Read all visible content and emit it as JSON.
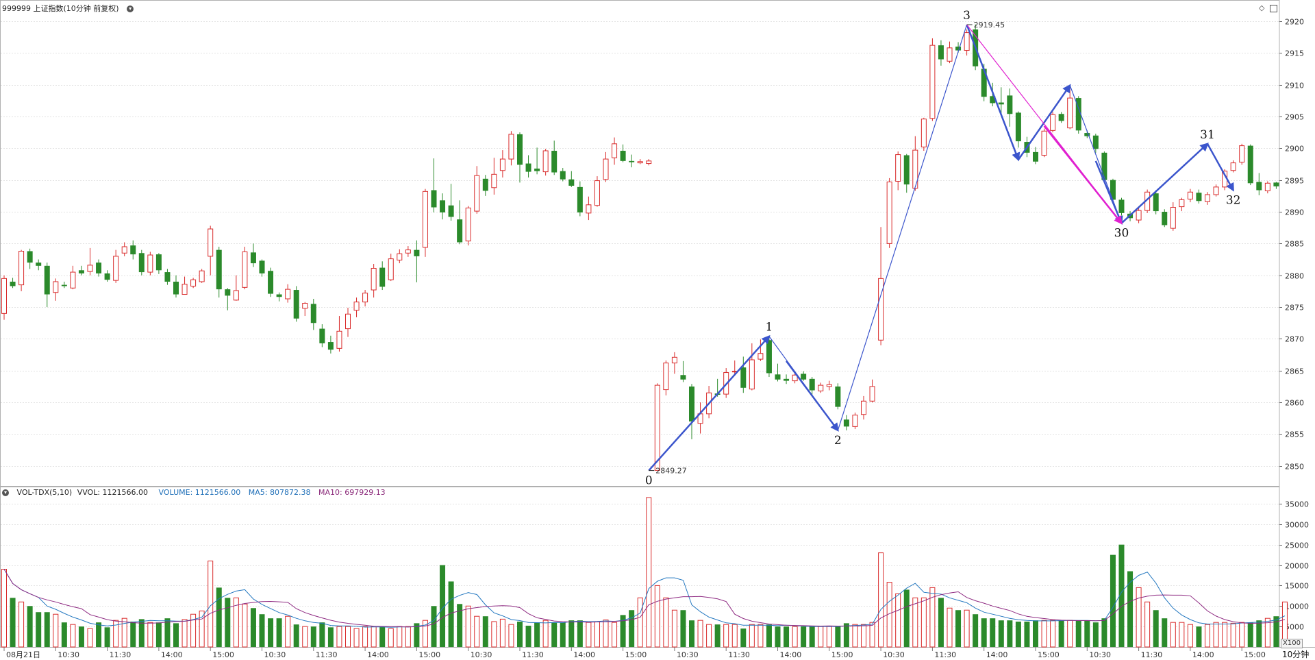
{
  "header": {
    "title": "999999 上证指数(10分钟 前复权)",
    "menu_icon": "chevron-down-icon",
    "controls": [
      "diamond-icon",
      "panel-toggle-icon"
    ]
  },
  "volume_header": {
    "name": "VOL-TDX(5,10)",
    "vvol": "VVOL: 1121566.00",
    "volume": "VOLUME: 1121566.00",
    "ma5": "MA5: 807872.38",
    "ma10": "MA10: 697929.13",
    "colors": {
      "volume": "#1f6fb8",
      "ma5": "#1f6fb8",
      "ma10": "#8b2a7a"
    }
  },
  "x_unit_tag": "X100",
  "period_label": "10分钟",
  "colors": {
    "up": "#d92a2a",
    "down": "#2b8a2b",
    "wave": "#3b55cc",
    "channel": "#e020d0",
    "ma5": "#2478c0",
    "ma10": "#8e2a82",
    "grid": "#e3e3e3"
  },
  "chart_data": {
    "type": "candlestick",
    "price_axis": {
      "ticks": [
        2850,
        2855,
        2860,
        2865,
        2870,
        2875,
        2880,
        2885,
        2890,
        2895,
        2900,
        2905,
        2910,
        2915,
        2920
      ],
      "range": [
        2847.5,
        2921.5
      ]
    },
    "volume_axis": {
      "ticks": [
        5000,
        10000,
        15000,
        20000,
        25000,
        30000,
        35000
      ],
      "range": [
        0,
        37500
      ],
      "unit": "X100"
    },
    "time_labels": [
      {
        "i": 0,
        "t": "08月21日"
      },
      {
        "i": 6,
        "t": "10:30"
      },
      {
        "i": 12,
        "t": "11:30"
      },
      {
        "i": 18,
        "t": "14:00"
      },
      {
        "i": 24,
        "t": "15:00"
      },
      {
        "i": 30,
        "t": "10:30"
      },
      {
        "i": 36,
        "t": "11:30"
      },
      {
        "i": 42,
        "t": "14:00"
      },
      {
        "i": 48,
        "t": "15:00"
      },
      {
        "i": 54,
        "t": "10:30"
      },
      {
        "i": 60,
        "t": "11:30"
      },
      {
        "i": 66,
        "t": "14:00"
      },
      {
        "i": 72,
        "t": "15:00"
      },
      {
        "i": 78,
        "t": "10:30"
      },
      {
        "i": 84,
        "t": "11:30"
      },
      {
        "i": 90,
        "t": "14:00"
      },
      {
        "i": 96,
        "t": "15:00"
      },
      {
        "i": 102,
        "t": "10:30"
      },
      {
        "i": 108,
        "t": "11:30"
      },
      {
        "i": 114,
        "t": "14:00"
      },
      {
        "i": 120,
        "t": "15:00"
      },
      {
        "i": 126,
        "t": "10:30"
      },
      {
        "i": 132,
        "t": "11:30"
      },
      {
        "i": 138,
        "t": "14:00"
      },
      {
        "i": 144,
        "t": "15:00"
      }
    ],
    "candles": [
      [
        2874,
        2879.5,
        2873,
        2880
      ],
      [
        2879,
        2878.3,
        2878,
        2879.6
      ],
      [
        2878.5,
        2883.8,
        2877.5,
        2884
      ],
      [
        2883.8,
        2882,
        2881,
        2884.2
      ],
      [
        2882,
        2881.5,
        2880.8,
        2882.5
      ],
      [
        2881.5,
        2877,
        2875,
        2882
      ],
      [
        2877.3,
        2879,
        2876,
        2879.5
      ],
      [
        2878.5,
        2878.3,
        2878,
        2879
      ],
      [
        2878,
        2880.5,
        2877.8,
        2881.5
      ],
      [
        2880.8,
        2880.3,
        2880,
        2881.5
      ],
      [
        2880.6,
        2881.6,
        2880,
        2884.3
      ],
      [
        2882,
        2880.3,
        2879.8,
        2882.5
      ],
      [
        2880.3,
        2879.3,
        2879,
        2880.8
      ],
      [
        2879.2,
        2883,
        2878.8,
        2884
      ],
      [
        2883.5,
        2884.5,
        2883,
        2885.2
      ],
      [
        2884.7,
        2883.3,
        2882.5,
        2885.5
      ],
      [
        2883.5,
        2880.5,
        2880,
        2884
      ],
      [
        2880.5,
        2883.2,
        2880,
        2883.7
      ],
      [
        2883.3,
        2880.8,
        2880.2,
        2883.5
      ],
      [
        2880.5,
        2879,
        2878.5,
        2881
      ],
      [
        2879,
        2877,
        2876.5,
        2880
      ],
      [
        2877,
        2878.6,
        2877,
        2879.8
      ],
      [
        2878.3,
        2879.3,
        2878,
        2879.6
      ],
      [
        2879,
        2880.7,
        2878.8,
        2881
      ],
      [
        2883,
        2887.3,
        2880,
        2887.8
      ],
      [
        2884,
        2877.8,
        2876.5,
        2884.5
      ],
      [
        2877.8,
        2876.8,
        2874.5,
        2878
      ],
      [
        2876.1,
        2877.6,
        2876,
        2880
      ],
      [
        2878.1,
        2883.7,
        2877.8,
        2884.5
      ],
      [
        2883.6,
        2881.9,
        2881.3,
        2885
      ],
      [
        2882.3,
        2880.3,
        2879.8,
        2882.5
      ],
      [
        2880.7,
        2877.1,
        2876.6,
        2881.2
      ],
      [
        2877,
        2876.6,
        2875.9,
        2877.3
      ],
      [
        2876.3,
        2877.8,
        2875.7,
        2878.6
      ],
      [
        2877.7,
        2873.2,
        2872.7,
        2878.3
      ],
      [
        2874.8,
        2875.6,
        2873.6,
        2875.8
      ],
      [
        2875.5,
        2872.5,
        2871.4,
        2876.3
      ],
      [
        2871.6,
        2869.3,
        2868.7,
        2872.3
      ],
      [
        2869.5,
        2868.3,
        2867.7,
        2870.5
      ],
      [
        2868.5,
        2871.2,
        2868,
        2873.6
      ],
      [
        2871.6,
        2873.9,
        2870.3,
        2874.9
      ],
      [
        2874.5,
        2875.8,
        2873.4,
        2876.5
      ],
      [
        2875.8,
        2877.2,
        2875.1,
        2877.7
      ],
      [
        2877.7,
        2881.1,
        2876.5,
        2881.8
      ],
      [
        2881.2,
        2878.2,
        2877.7,
        2882.2
      ],
      [
        2879.3,
        2882.6,
        2879.1,
        2883.4
      ],
      [
        2882.4,
        2883.4,
        2881.9,
        2884.1
      ],
      [
        2883.5,
        2884,
        2882.9,
        2884.6
      ],
      [
        2884,
        2883,
        2878.9,
        2885.5
      ],
      [
        2884.4,
        2893.2,
        2882.9,
        2893.6
      ],
      [
        2893.4,
        2890.7,
        2889.9,
        2898.4
      ],
      [
        2891.8,
        2889.9,
        2888.8,
        2892.9
      ],
      [
        2891,
        2889.2,
        2888.6,
        2894.4
      ],
      [
        2888.8,
        2885.2,
        2884.9,
        2891.8
      ],
      [
        2885.4,
        2890.6,
        2884.7,
        2890.9
      ],
      [
        2890.1,
        2895.7,
        2889.7,
        2897.2
      ],
      [
        2895.2,
        2893.3,
        2892.5,
        2895.8
      ],
      [
        2893.8,
        2895.9,
        2892.7,
        2898.5
      ],
      [
        2896.5,
        2898.3,
        2895.4,
        2899.7
      ],
      [
        2898.3,
        2902.2,
        2897.3,
        2902.7
      ],
      [
        2902.2,
        2897.4,
        2894.6,
        2902.5
      ],
      [
        2897.6,
        2896.3,
        2895.4,
        2898.9
      ],
      [
        2896.8,
        2896.4,
        2895.9,
        2900.1
      ],
      [
        2896.3,
        2899.6,
        2895.7,
        2899.9
      ],
      [
        2899.6,
        2896.2,
        2895.8,
        2901.2
      ],
      [
        2896.4,
        2895.1,
        2894.8,
        2896.9
      ],
      [
        2895.1,
        2894.1,
        2893.9,
        2896.4
      ],
      [
        2893.9,
        2889.9,
        2889.3,
        2894.8
      ],
      [
        2889.8,
        2891.1,
        2888.7,
        2892.4
      ],
      [
        2891,
        2894.9,
        2890.8,
        2895.6
      ],
      [
        2895.1,
        2898.3,
        2894.7,
        2899.4
      ],
      [
        2898.5,
        2900.7,
        2897.4,
        2901.7
      ],
      [
        2899.6,
        2898,
        2897.8,
        2900.6
      ],
      [
        2898,
        2897.8,
        2897,
        2899
      ],
      [
        2897.7,
        2897.9,
        2897.5,
        2898.3
      ],
      [
        2897.6,
        2898,
        2897.3,
        2898.3
      ],
      [
        2849.3,
        2862.7,
        2849.3,
        2863
      ],
      [
        2862,
        2866.2,
        2861.1,
        2866.6
      ],
      [
        2866.2,
        2867.1,
        2864.5,
        2867.9
      ],
      [
        2864.3,
        2863.6,
        2863.2,
        2866.5
      ],
      [
        2862.5,
        2857,
        2854.2,
        2862.9
      ],
      [
        2856.7,
        2858.2,
        2855.1,
        2860
      ],
      [
        2858.2,
        2861.5,
        2857.5,
        2862.6
      ],
      [
        2861.4,
        2861.2,
        2860.9,
        2863.7
      ],
      [
        2861.3,
        2864.7,
        2860.7,
        2865.4
      ],
      [
        2864.8,
        2864.9,
        2864.4,
        2866.6
      ],
      [
        2865.5,
        2862.3,
        2861.5,
        2867.2
      ],
      [
        2862.1,
        2866.7,
        2861.9,
        2869.3
      ],
      [
        2866.8,
        2867.7,
        2866.5,
        2869.9
      ],
      [
        2869.8,
        2864.6,
        2864,
        2870.4
      ],
      [
        2864.4,
        2863.6,
        2863.3,
        2866.1
      ],
      [
        2863.7,
        2863.4,
        2862.9,
        2864.4
      ],
      [
        2863.4,
        2864.3,
        2863,
        2864.5
      ],
      [
        2864.5,
        2863.6,
        2863.4,
        2864.9
      ],
      [
        2863.7,
        2861.9,
        2861.2,
        2864
      ],
      [
        2861.8,
        2862.7,
        2861.5,
        2863.1
      ],
      [
        2862.5,
        2862.8,
        2861.9,
        2863.4
      ],
      [
        2862.5,
        2859.3,
        2858.9,
        2863
      ],
      [
        2857.3,
        2856.2,
        2855.6,
        2858
      ],
      [
        2856.2,
        2858,
        2855.8,
        2858.4
      ],
      [
        2858.1,
        2860.2,
        2857.3,
        2861
      ],
      [
        2860.2,
        2862.5,
        2860,
        2863.6
      ],
      [
        2869.8,
        2879.5,
        2869,
        2887.6
      ],
      [
        2885,
        2894.7,
        2884.3,
        2895.3
      ],
      [
        2894.8,
        2899,
        2893.4,
        2899.5
      ],
      [
        2898.9,
        2894.3,
        2893,
        2899.1
      ],
      [
        2893.7,
        2899.7,
        2893.3,
        2901.9
      ],
      [
        2900.2,
        2904.6,
        2899.6,
        2904.8
      ],
      [
        2904.7,
        2916.2,
        2904.3,
        2917.3
      ],
      [
        2916.2,
        2914,
        2913,
        2917
      ],
      [
        2913.7,
        2915.8,
        2913.4,
        2916.8
      ],
      [
        2916,
        2915.4,
        2915,
        2916.7
      ],
      [
        2915.4,
        2918.2,
        2914.6,
        2918.7
      ],
      [
        2918.7,
        2912.9,
        2912.3,
        2919.5
      ],
      [
        2912.5,
        2908.1,
        2907.4,
        2913.3
      ],
      [
        2908.2,
        2907.1,
        2906.6,
        2910.3
      ],
      [
        2907.2,
        2906.9,
        2905.3,
        2909.6
      ],
      [
        2908.3,
        2905.4,
        2903.4,
        2909.4
      ],
      [
        2905.6,
        2901.1,
        2900.1,
        2905.8
      ],
      [
        2901,
        2899.3,
        2898.6,
        2901.8
      ],
      [
        2899.4,
        2897.9,
        2897.5,
        2900.2
      ],
      [
        2898.9,
        2902.7,
        2898.6,
        2903.1
      ],
      [
        2902.8,
        2905.3,
        2902.5,
        2905.7
      ],
      [
        2905.4,
        2904.3,
        2904,
        2905.7
      ],
      [
        2903.2,
        2907.9,
        2903,
        2909.7
      ],
      [
        2907.9,
        2902.8,
        2902.3,
        2908.2
      ],
      [
        2902.4,
        2901.9,
        2901.6,
        2902.8
      ],
      [
        2902,
        2899.9,
        2899.3,
        2902.3
      ],
      [
        2899.3,
        2895,
        2894.8,
        2899.5
      ],
      [
        2895,
        2891.9,
        2891.3,
        2895.2
      ],
      [
        2891.9,
        2889.8,
        2889.4,
        2892.2
      ],
      [
        2889.7,
        2889,
        2888.5,
        2890.1
      ],
      [
        2888.7,
        2890.2,
        2888.2,
        2890.7
      ],
      [
        2890.2,
        2893.1,
        2889.8,
        2893.5
      ],
      [
        2892.9,
        2890.1,
        2889.6,
        2893.4
      ],
      [
        2890,
        2887.9,
        2887.6,
        2890.4
      ],
      [
        2887.4,
        2890.7,
        2887,
        2891.5
      ],
      [
        2890.8,
        2891.9,
        2890.1,
        2892.2
      ],
      [
        2892,
        2893.1,
        2891.5,
        2893.6
      ],
      [
        2893,
        2891.7,
        2891.3,
        2893.5
      ],
      [
        2891.6,
        2892.7,
        2891.1,
        2893.1
      ],
      [
        2892.7,
        2893.9,
        2892.4,
        2894.3
      ],
      [
        2893.9,
        2896.4,
        2893.4,
        2896.7
      ],
      [
        2896.5,
        2897.7,
        2896.2,
        2898.1
      ],
      [
        2897.8,
        2900.4,
        2897.4,
        2900.7
      ],
      [
        2900.4,
        2894.5,
        2894.2,
        2900.6
      ],
      [
        2894.7,
        2893.4,
        2892.6,
        2896.1
      ],
      [
        2893.3,
        2894.5,
        2892.9,
        2894.8
      ],
      [
        2894.6,
        2894,
        2893.6,
        2894.7
      ]
    ],
    "volume": [
      19000,
      12000,
      11000,
      10000,
      8500,
      8500,
      8000,
      6000,
      5500,
      5000,
      4500,
      6000,
      4800,
      6500,
      7000,
      6200,
      6800,
      6000,
      6000,
      7000,
      5800,
      6700,
      8000,
      8800,
      21000,
      14500,
      12000,
      12000,
      10500,
      9500,
      8000,
      7000,
      7000,
      7500,
      5500,
      5000,
      5000,
      6000,
      4800,
      5000,
      5000,
      4500,
      5000,
      5000,
      5000,
      4500,
      5000,
      5000,
      5800,
      6500,
      10000,
      20000,
      16000,
      10500,
      10000,
      7500,
      7500,
      6200,
      6800,
      5500,
      6200,
      5200,
      6000,
      6500,
      6000,
      6000,
      6500,
      6500,
      6000,
      6200,
      6600,
      6000,
      7800,
      9000,
      12000,
      36500,
      15000,
      12000,
      9000,
      9000,
      6500,
      6500,
      5500,
      5500,
      5500,
      5500,
      4500,
      5500,
      5500,
      5500,
      5000,
      5000,
      5000,
      5000,
      5000,
      5000,
      5000,
      5000,
      5800,
      5500,
      5500,
      6000,
      23000,
      15800,
      13000,
      14000,
      12000,
      12000,
      14500,
      12000,
      9500,
      9000,
      9000,
      8000,
      7000,
      7000,
      6500,
      6500,
      6200,
      6200,
      6500,
      6500,
      6500,
      6500,
      6500,
      6500,
      6500,
      6000,
      7000,
      22500,
      25000,
      18500,
      14500,
      11000,
      9000,
      7000,
      6000,
      6000,
      5500,
      5000,
      5500,
      6000,
      6000,
      5800,
      6000,
      6000,
      6500,
      7000,
      7500,
      11000
    ],
    "wave_labels": [
      {
        "label": "0",
        "i": 75,
        "price": 2849.27,
        "value_text": "2849.27",
        "pos": "below"
      },
      {
        "label": "1",
        "i": 89,
        "price": 2870.4,
        "pos": "above"
      },
      {
        "label": "2",
        "i": 97,
        "price": 2855.6,
        "pos": "below"
      },
      {
        "label": "3",
        "i": 112,
        "price": 2919.45,
        "value_text": "2919.45",
        "pos": "above"
      },
      {
        "label": "30",
        "i": 130,
        "price": 2888.2,
        "pos": "below"
      },
      {
        "label": "31",
        "i": 140,
        "price": 2900.7,
        "pos": "above"
      },
      {
        "label": "32",
        "i": 143,
        "price": 2893.4,
        "pos": "below"
      }
    ],
    "wave_lines": [
      {
        "style": "blue-thick",
        "from": [
          75,
          2849.27
        ],
        "to": [
          89,
          2870.4
        ]
      },
      {
        "style": "blue-thin",
        "from": [
          89,
          2870.4
        ],
        "to": [
          97,
          2855.6
        ]
      },
      {
        "style": "blue-thick",
        "from": [
          91,
          2866.5
        ],
        "to": [
          97,
          2855.6
        ]
      },
      {
        "style": "blue-thin",
        "from": [
          97,
          2855.6
        ],
        "to": [
          112,
          2919.45
        ]
      },
      {
        "style": "blue-thick",
        "from": [
          112,
          2919.45
        ],
        "to": [
          118,
          2898.2
        ]
      },
      {
        "style": "blue-thin",
        "from": [
          118,
          2898.2
        ],
        "to": [
          124,
          2909.9
        ]
      },
      {
        "style": "blue-thick",
        "from": [
          118,
          2898.2
        ],
        "to": [
          124,
          2909.9
        ]
      },
      {
        "style": "blue-thin",
        "from": [
          124,
          2909.9
        ],
        "to": [
          130,
          2888.2
        ]
      },
      {
        "style": "blue-thick",
        "from": [
          127,
          2898
        ],
        "to": [
          130,
          2888.2
        ]
      },
      {
        "style": "blue-thick",
        "from": [
          130,
          2888.2
        ],
        "to": [
          140,
          2900.7
        ]
      },
      {
        "style": "blue-thick",
        "from": [
          140,
          2900.7
        ],
        "to": [
          143,
          2893.4
        ]
      },
      {
        "style": "magenta",
        "from": [
          112,
          2919.45
        ],
        "to": [
          130,
          2888.2
        ]
      },
      {
        "style": "magenta-thick",
        "from": [
          121,
          2903.5
        ],
        "to": [
          130,
          2888.2
        ]
      }
    ]
  }
}
